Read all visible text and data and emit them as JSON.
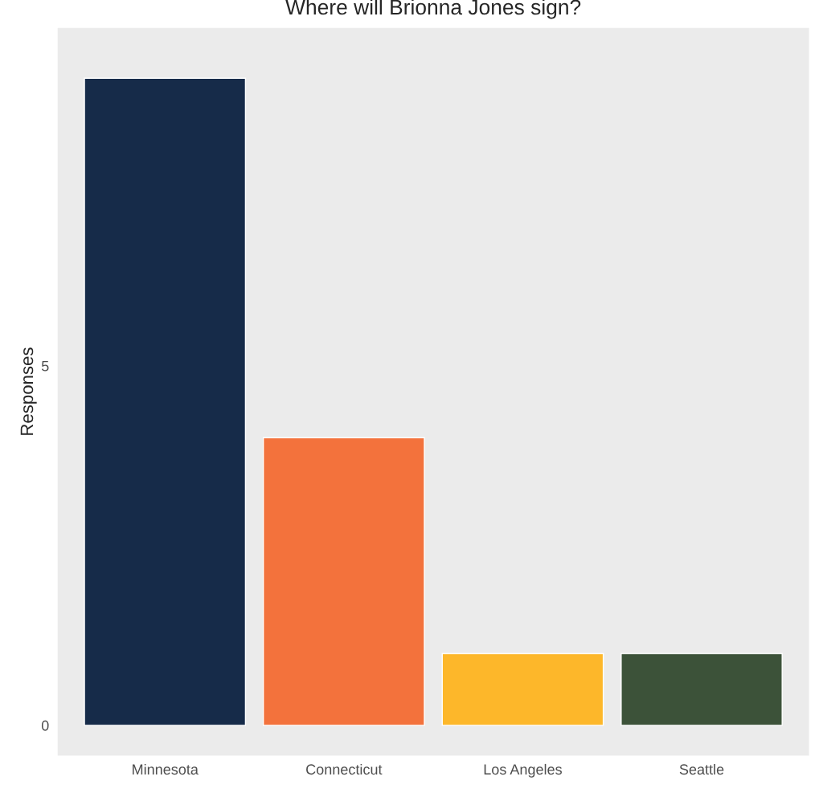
{
  "chart_data": {
    "type": "bar",
    "title": "Where will Brionna Jones sign?",
    "ylabel": "Responses",
    "categories": [
      "Minnesota",
      "Connecticut",
      "Los Angeles",
      "Seattle"
    ],
    "values": [
      9,
      4,
      1,
      1
    ],
    "colors": [
      "#162b49",
      "#f3723c",
      "#fdb72a",
      "#3c5239"
    ],
    "ylim": [
      -0.42,
      9.7
    ],
    "yticks": [
      0,
      5
    ],
    "grid": false,
    "legend": false
  }
}
